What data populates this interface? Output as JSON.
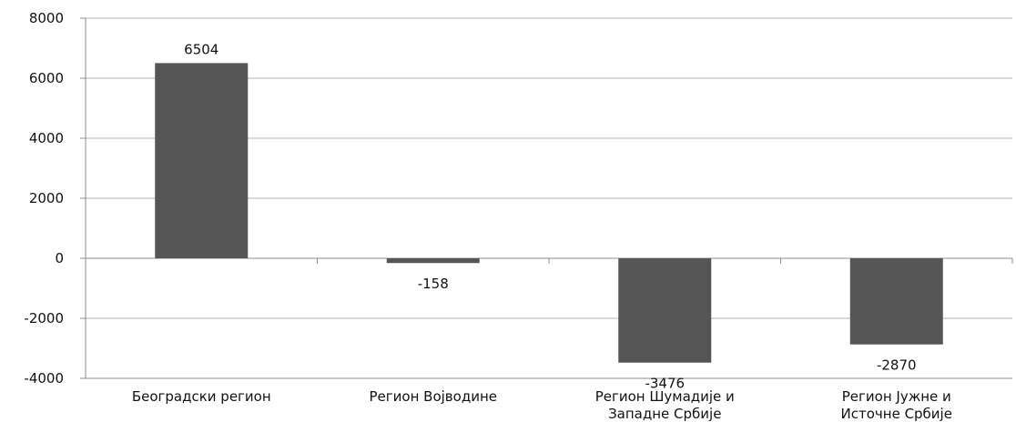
{
  "chart_data": {
    "type": "bar",
    "title": "",
    "xlabel": "",
    "ylabel": "",
    "categories": [
      [
        "Београдски регион"
      ],
      [
        "Регион Војводине"
      ],
      [
        "Регион Шумадије и",
        "Западне Србије"
      ],
      [
        "Регион Јужне и",
        "Источне Србије"
      ]
    ],
    "values": [
      6504,
      -158,
      -3476,
      -2870
    ],
    "data_labels": [
      "6504",
      "-158",
      "-3476",
      "-2870"
    ],
    "ylim": [
      -4000,
      8000
    ],
    "yticks": [
      8000,
      6000,
      4000,
      2000,
      0,
      -2000,
      -4000
    ],
    "grid": true,
    "legend": "none",
    "bar_color": "#555555",
    "grid_color": "#b3b3b3",
    "axis_color": "#8c8c8c"
  }
}
